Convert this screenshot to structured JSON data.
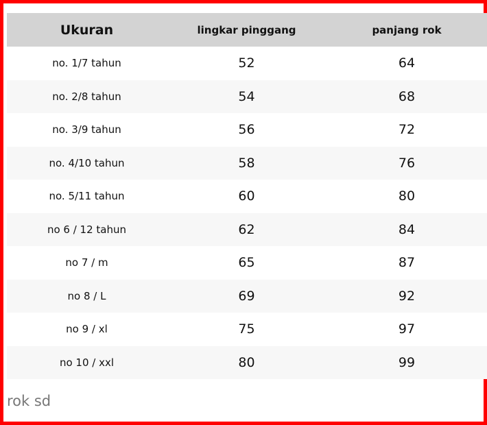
{
  "table": {
    "headers": [
      "Ukuran",
      "lingkar pinggang",
      "panjang rok"
    ],
    "rows": [
      [
        "no. 1/7 tahun",
        "52",
        "64"
      ],
      [
        "no. 2/8 tahun",
        "54",
        "68"
      ],
      [
        "no. 3/9 tahun",
        "56",
        "72"
      ],
      [
        "no. 4/10 tahun",
        "58",
        "76"
      ],
      [
        "no. 5/11 tahun",
        "60",
        "80"
      ],
      [
        "no 6 / 12 tahun",
        "62",
        "84"
      ],
      [
        "no 7 / m",
        "65",
        "87"
      ],
      [
        "no 8 / L",
        "69",
        "92"
      ],
      [
        "no 9 / xl",
        "75",
        "97"
      ],
      [
        "no 10 / xxl",
        "80",
        "99"
      ]
    ]
  },
  "caption": "rok sd",
  "colors": {
    "border": "#ff0000",
    "header_bg": "#d3d3d3",
    "stripe_bg": "#f7f7f7",
    "caption_text": "#777777"
  }
}
